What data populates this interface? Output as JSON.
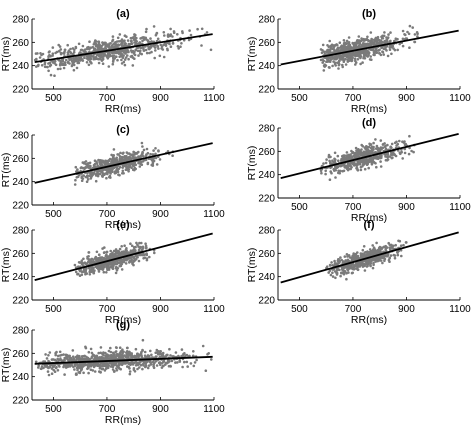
{
  "chart_data": [
    {
      "type": "scatter",
      "title": "(a)",
      "xlabel": "RR(ms)",
      "ylabel": "RT(ms)",
      "xlim": [
        420,
        1100
      ],
      "ylim": [
        220,
        280
      ],
      "xticks": [
        "500",
        "700",
        "900",
        "1100"
      ],
      "yticks": [
        "220",
        "240",
        "260",
        "280"
      ],
      "cloud": {
        "x_min": 430,
        "x_max": 1090,
        "x_center": 700,
        "y_intercept_at_min": 243,
        "y_spread": 8,
        "count": 700
      },
      "fit_line": {
        "x": [
          430,
          1095
        ],
        "y": [
          243,
          267
        ]
      },
      "marker_color": "#7a7a7a",
      "line_color": "#000000"
    },
    {
      "type": "scatter",
      "title": "(b)",
      "xlabel": "RR(ms)",
      "ylabel": "RT(ms)",
      "xlim": [
        420,
        1100
      ],
      "ylim": [
        220,
        280
      ],
      "xticks": [
        "500",
        "700",
        "900",
        "1100"
      ],
      "yticks": [
        "220",
        "240",
        "260",
        "280"
      ],
      "cloud": {
        "x_min": 580,
        "x_max": 950,
        "x_center": 700,
        "y_intercept_at_min": 247,
        "y_spread": 8,
        "count": 650
      },
      "fit_line": {
        "x": [
          430,
          1095
        ],
        "y": [
          241,
          270
        ]
      },
      "marker_color": "#7a7a7a",
      "line_color": "#000000"
    },
    {
      "type": "scatter",
      "title": "(c)",
      "xlabel": "RR(ms)",
      "ylabel": "RT(ms)",
      "xlim": [
        420,
        1100
      ],
      "ylim": [
        220,
        280
      ],
      "xticks": [
        "500",
        "700",
        "900",
        "1100"
      ],
      "yticks": [
        "220",
        "240",
        "260",
        "280"
      ],
      "cloud": {
        "x_min": 580,
        "x_max": 950,
        "x_center": 730,
        "y_intercept_at_min": 246,
        "y_spread": 7,
        "count": 500
      },
      "fit_line": {
        "x": [
          430,
          1095
        ],
        "y": [
          239,
          273
        ]
      },
      "marker_color": "#7a7a7a",
      "line_color": "#000000"
    },
    {
      "type": "scatter",
      "title": "(d)",
      "xlabel": "RR(ms)",
      "ylabel": "RT(ms)",
      "xlim": [
        420,
        1100
      ],
      "ylim": [
        220,
        280
      ],
      "xticks": [
        "500",
        "700",
        "900",
        "1100"
      ],
      "yticks": [
        "220",
        "240",
        "260",
        "280"
      ],
      "cloud": {
        "x_min": 580,
        "x_max": 930,
        "x_center": 730,
        "y_intercept_at_min": 249,
        "y_spread": 7,
        "count": 550
      },
      "fit_line": {
        "x": [
          430,
          1095
        ],
        "y": [
          237,
          275
        ]
      },
      "marker_color": "#7a7a7a",
      "line_color": "#000000"
    },
    {
      "type": "scatter",
      "title": "(e)",
      "xlabel": "RR(ms)",
      "ylabel": "RT(ms)",
      "xlim": [
        420,
        1100
      ],
      "ylim": [
        220,
        280
      ],
      "xticks": [
        "500",
        "700",
        "900",
        "1100"
      ],
      "yticks": [
        "220",
        "240",
        "260",
        "280"
      ],
      "cloud": {
        "x_min": 580,
        "x_max": 880,
        "x_center": 720,
        "y_intercept_at_min": 243,
        "y_spread": 7,
        "count": 550
      },
      "fit_line": {
        "x": [
          430,
          1095
        ],
        "y": [
          237,
          277
        ]
      },
      "marker_color": "#7a7a7a",
      "line_color": "#000000"
    },
    {
      "type": "scatter",
      "title": "(f)",
      "xlabel": "RR(ms)",
      "ylabel": "RT(ms)",
      "xlim": [
        420,
        1100
      ],
      "ylim": [
        220,
        280
      ],
      "xticks": [
        "500",
        "700",
        "900",
        "1100"
      ],
      "yticks": [
        "220",
        "240",
        "260",
        "280"
      ],
      "cloud": {
        "x_min": 600,
        "x_max": 900,
        "x_center": 740,
        "y_intercept_at_min": 244,
        "y_spread": 6,
        "count": 550
      },
      "fit_line": {
        "x": [
          430,
          1095
        ],
        "y": [
          235,
          278
        ]
      },
      "marker_color": "#7a7a7a",
      "line_color": "#000000"
    },
    {
      "type": "scatter",
      "title": "(g)",
      "xlabel": "RR(ms)",
      "ylabel": "RT(ms)",
      "xlim": [
        420,
        1100
      ],
      "ylim": [
        220,
        280
      ],
      "xticks": [
        "500",
        "700",
        "900",
        "1100"
      ],
      "yticks": [
        "220",
        "240",
        "260",
        "280"
      ],
      "cloud": {
        "x_min": 430,
        "x_max": 1090,
        "x_center": 700,
        "y_intercept_at_min": 251,
        "y_spread": 7,
        "count": 800
      },
      "fit_line": {
        "x": [
          430,
          1095
        ],
        "y": [
          251,
          257
        ]
      },
      "marker_color": "#7a7a7a",
      "line_color": "#000000"
    }
  ]
}
